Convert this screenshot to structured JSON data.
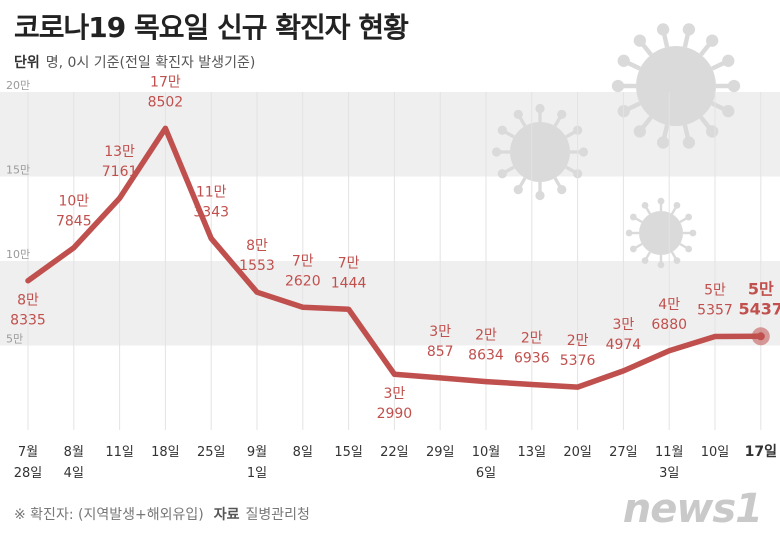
{
  "title": "코로나19 목요일 신규 확진자 현황",
  "unit": {
    "label": "단위",
    "text": "명, 0시 기준(전일 확진자 발생기준)"
  },
  "footer": {
    "note": "※ 확진자: (지역발생+해외유입)",
    "source_label": "자료",
    "source": "질병관리청"
  },
  "logo": "news1",
  "colors": {
    "line": "#c0504d",
    "label": "#c0504d",
    "band": "#efefef",
    "grid": "#e3e3e3",
    "tick": "#9a9a9a",
    "axis_text": "#333333",
    "virus": "#dadada"
  },
  "chart_data": {
    "type": "line",
    "title": "코로나19 목요일 신규 확진자 현황",
    "ylim": [
      0,
      200000
    ],
    "y_ticks": [
      {
        "value": 200000,
        "label": "20만"
      },
      {
        "value": 150000,
        "label": "15만"
      },
      {
        "value": 100000,
        "label": "10만"
      },
      {
        "value": 50000,
        "label": "5만"
      }
    ],
    "x_labels": [
      [
        "7월",
        "28일"
      ],
      [
        "8월",
        "4일"
      ],
      [
        "11일"
      ],
      [
        "18일"
      ],
      [
        "25일"
      ],
      [
        "9월",
        "1일"
      ],
      [
        "8일"
      ],
      [
        "15일"
      ],
      [
        "22일"
      ],
      [
        "29일"
      ],
      [
        "10월",
        "6일"
      ],
      [
        "13일"
      ],
      [
        "20일"
      ],
      [
        "27일"
      ],
      [
        "11월",
        "3일"
      ],
      [
        "10일"
      ],
      [
        "17일"
      ]
    ],
    "values": [
      88335,
      107845,
      137161,
      178502,
      113343,
      81553,
      72620,
      71444,
      32990,
      30857,
      28634,
      26936,
      25376,
      34974,
      46880,
      55357,
      55437
    ],
    "labels": [
      [
        "8만",
        "8335"
      ],
      [
        "10만",
        "7845"
      ],
      [
        "13만",
        "7161"
      ],
      [
        "17만",
        "8502"
      ],
      [
        "11만",
        "3343"
      ],
      [
        "8만",
        "1553"
      ],
      [
        "7만",
        "2620"
      ],
      [
        "7만",
        "1444"
      ],
      [
        "3만",
        "2990"
      ],
      [
        "3만",
        "857"
      ],
      [
        "2만",
        "8634"
      ],
      [
        "2만",
        "6936"
      ],
      [
        "2만",
        "5376"
      ],
      [
        "3만",
        "4974"
      ],
      [
        "4만",
        "6880"
      ],
      [
        "5만",
        "5357"
      ],
      [
        "5만",
        "5437"
      ]
    ],
    "label_below": [
      true,
      false,
      false,
      false,
      false,
      false,
      false,
      false,
      true,
      false,
      false,
      false,
      false,
      false,
      false,
      false,
      false
    ],
    "highlight_last": true
  }
}
